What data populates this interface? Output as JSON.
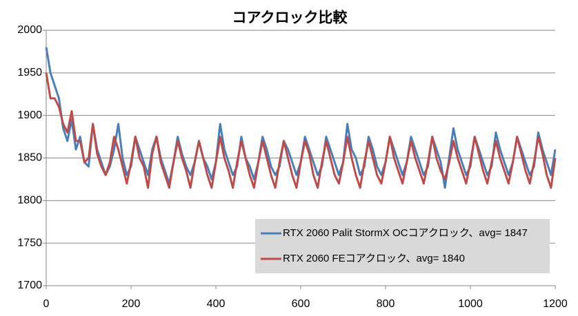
{
  "chart_data": {
    "type": "line",
    "title": "コアクロック比較",
    "x": [
      0,
      10,
      20,
      30,
      40,
      50,
      60,
      70,
      80,
      90,
      100,
      110,
      120,
      130,
      140,
      150,
      160,
      170,
      180,
      190,
      200,
      210,
      220,
      230,
      240,
      250,
      260,
      270,
      280,
      290,
      300,
      310,
      320,
      330,
      340,
      350,
      360,
      370,
      380,
      390,
      400,
      410,
      420,
      430,
      440,
      450,
      460,
      470,
      480,
      490,
      500,
      510,
      520,
      530,
      540,
      550,
      560,
      570,
      580,
      590,
      600,
      610,
      620,
      630,
      640,
      650,
      660,
      670,
      680,
      690,
      700,
      710,
      720,
      730,
      740,
      750,
      760,
      770,
      780,
      790,
      800,
      810,
      820,
      830,
      840,
      850,
      860,
      870,
      880,
      890,
      900,
      910,
      920,
      930,
      940,
      950,
      960,
      970,
      980,
      990,
      1000,
      1010,
      1020,
      1030,
      1040,
      1050,
      1060,
      1070,
      1080,
      1090,
      1100,
      1110,
      1120,
      1130,
      1140,
      1150,
      1160,
      1170,
      1180,
      1190,
      1200
    ],
    "series": [
      {
        "name": "RTX 2060 Palit StormX OCコアクロック、avg= 1847",
        "color": "#4a7ebb",
        "values": [
          1980,
          1950,
          1935,
          1920,
          1885,
          1870,
          1895,
          1860,
          1875,
          1845,
          1840,
          1890,
          1860,
          1845,
          1830,
          1840,
          1860,
          1890,
          1850,
          1830,
          1840,
          1875,
          1860,
          1845,
          1830,
          1860,
          1875,
          1850,
          1835,
          1820,
          1845,
          1875,
          1855,
          1840,
          1830,
          1845,
          1870,
          1850,
          1840,
          1825,
          1845,
          1890,
          1860,
          1845,
          1830,
          1840,
          1875,
          1850,
          1840,
          1825,
          1845,
          1875,
          1860,
          1840,
          1830,
          1840,
          1870,
          1860,
          1845,
          1830,
          1845,
          1875,
          1860,
          1845,
          1830,
          1840,
          1875,
          1860,
          1845,
          1830,
          1845,
          1890,
          1860,
          1850,
          1830,
          1840,
          1875,
          1860,
          1840,
          1830,
          1845,
          1875,
          1860,
          1845,
          1830,
          1845,
          1875,
          1860,
          1845,
          1830,
          1840,
          1875,
          1860,
          1845,
          1815,
          1850,
          1885,
          1860,
          1845,
          1830,
          1840,
          1875,
          1860,
          1845,
          1830,
          1840,
          1880,
          1860,
          1845,
          1830,
          1845,
          1875,
          1860,
          1845,
          1830,
          1840,
          1880,
          1860,
          1845,
          1830,
          1860
        ]
      },
      {
        "name": "RTX 2060 FEコアクロック、avg= 1840",
        "color": "#be4b48",
        "values": [
          1950,
          1920,
          1920,
          1910,
          1890,
          1880,
          1905,
          1870,
          1870,
          1845,
          1850,
          1890,
          1855,
          1840,
          1830,
          1845,
          1875,
          1860,
          1840,
          1820,
          1845,
          1875,
          1850,
          1840,
          1815,
          1855,
          1875,
          1845,
          1830,
          1815,
          1845,
          1870,
          1850,
          1835,
          1815,
          1845,
          1870,
          1850,
          1830,
          1815,
          1845,
          1875,
          1850,
          1835,
          1815,
          1845,
          1870,
          1850,
          1830,
          1815,
          1845,
          1870,
          1850,
          1830,
          1815,
          1845,
          1870,
          1850,
          1830,
          1815,
          1845,
          1870,
          1855,
          1830,
          1815,
          1845,
          1870,
          1850,
          1830,
          1820,
          1845,
          1875,
          1850,
          1830,
          1815,
          1845,
          1870,
          1850,
          1830,
          1820,
          1845,
          1875,
          1850,
          1835,
          1820,
          1845,
          1870,
          1850,
          1835,
          1820,
          1845,
          1875,
          1850,
          1835,
          1825,
          1845,
          1870,
          1850,
          1835,
          1820,
          1845,
          1875,
          1855,
          1835,
          1820,
          1845,
          1870,
          1850,
          1835,
          1820,
          1845,
          1875,
          1855,
          1835,
          1820,
          1845,
          1875,
          1855,
          1830,
          1815,
          1850
        ]
      }
    ],
    "xlim": [
      0,
      1200
    ],
    "xticks": [
      0,
      200,
      400,
      600,
      800,
      1000,
      1200
    ],
    "ylim": [
      1700,
      2000
    ],
    "yticks": [
      1700,
      1750,
      1800,
      1850,
      1900,
      1950,
      2000
    ],
    "grid": true,
    "legend": "lower right"
  }
}
